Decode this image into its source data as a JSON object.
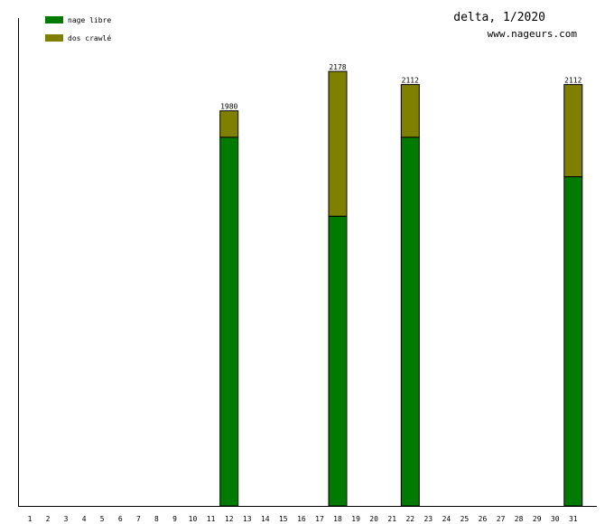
{
  "header": {
    "title": "delta, 1/2020",
    "site": "www.nageurs.com"
  },
  "colors": {
    "nage_libre": "#007a00",
    "dos_crawle": "#808000"
  },
  "chart_data": {
    "type": "bar",
    "stacked": true,
    "categories": [
      "1",
      "2",
      "3",
      "4",
      "5",
      "6",
      "7",
      "8",
      "9",
      "10",
      "11",
      "12",
      "13",
      "14",
      "15",
      "16",
      "17",
      "18",
      "19",
      "20",
      "21",
      "22",
      "23",
      "24",
      "25",
      "26",
      "27",
      "28",
      "29",
      "30",
      "31"
    ],
    "series": [
      {
        "name": "nage libre",
        "values": [
          0,
          0,
          0,
          0,
          0,
          0,
          0,
          0,
          0,
          0,
          0,
          1848,
          0,
          0,
          0,
          0,
          0,
          1452,
          0,
          0,
          0,
          1848,
          0,
          0,
          0,
          0,
          0,
          0,
          0,
          0,
          1650
        ]
      },
      {
        "name": "dos crawlé",
        "values": [
          0,
          0,
          0,
          0,
          0,
          0,
          0,
          0,
          0,
          0,
          0,
          132,
          0,
          0,
          0,
          0,
          0,
          726,
          0,
          0,
          0,
          264,
          0,
          0,
          0,
          0,
          0,
          0,
          0,
          0,
          462
        ]
      }
    ],
    "totals": [
      {
        "category": "12",
        "label": "1980"
      },
      {
        "category": "18",
        "label": "2178"
      },
      {
        "category": "22",
        "label": "2112"
      },
      {
        "category": "31",
        "label": "2112"
      }
    ],
    "ylim": [
      0,
      2178
    ],
    "grid": false,
    "legend_position": "top-left"
  }
}
